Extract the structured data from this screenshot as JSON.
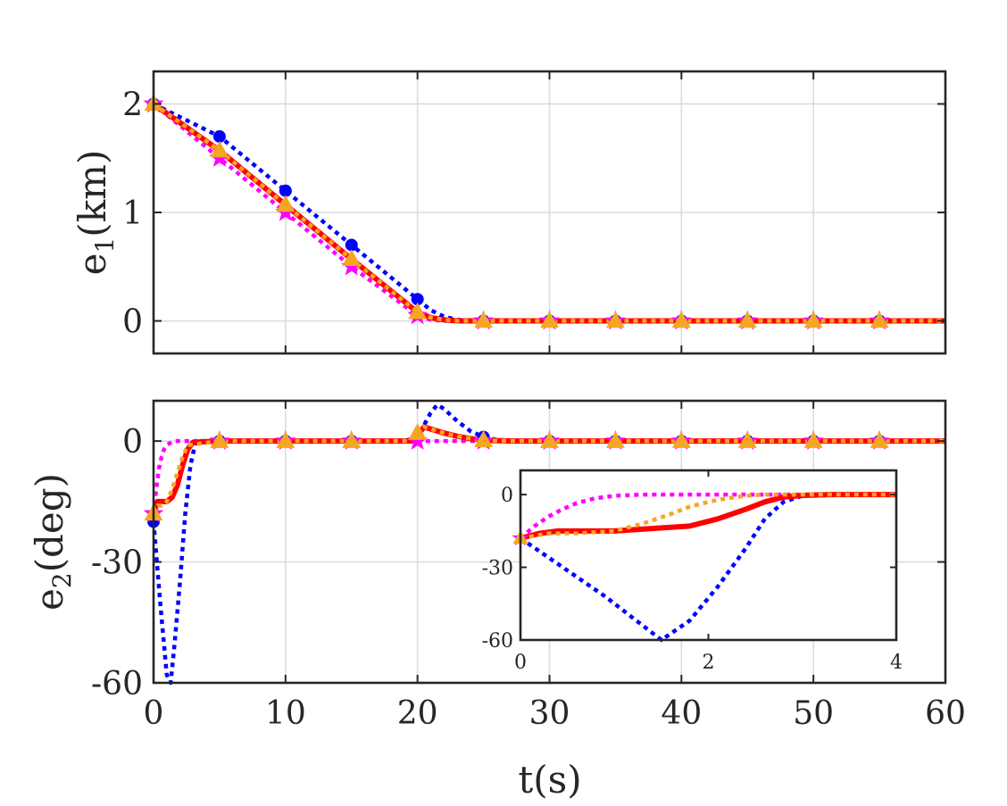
{
  "chart_data": [
    {
      "type": "line",
      "panel": "top",
      "xlabel": "",
      "ylabel": "e1(km)",
      "ylabel_base": "e",
      "ylabel_sub": "1",
      "ylabel_rest": "(km)",
      "xlim": [
        0,
        60
      ],
      "ylim": [
        -0.3,
        2.3
      ],
      "xticks": [
        0,
        10,
        20,
        30,
        40,
        50,
        60
      ],
      "yticks": [
        0,
        1,
        2
      ],
      "ytick_labels": [
        "0",
        "1",
        "2"
      ],
      "grid": true,
      "series": [
        {
          "color": "#0000ff",
          "style": "dotted",
          "marker": "circle",
          "x": [
            0,
            5,
            10,
            15,
            20,
            21,
            22,
            23,
            25,
            30,
            35,
            40,
            45,
            50,
            55,
            60
          ],
          "y": [
            2.0,
            1.7,
            1.2,
            0.7,
            0.2,
            0.1,
            0.04,
            0.01,
            0,
            0,
            0,
            0,
            0,
            0,
            0,
            0
          ]
        },
        {
          "color": "#ff00ff",
          "style": "dotted",
          "marker": "star",
          "x": [
            0,
            5,
            10,
            15,
            20,
            21,
            22,
            25,
            30,
            35,
            40,
            45,
            50,
            55,
            60
          ],
          "y": [
            2.0,
            1.5,
            1.0,
            0.5,
            0.05,
            0.01,
            0,
            0,
            0,
            0,
            0,
            0,
            0,
            0,
            0
          ]
        },
        {
          "color": "#ff0000",
          "style": "solid",
          "marker": "none",
          "x": [
            0,
            5,
            10,
            15,
            20,
            21,
            22,
            23,
            25,
            30,
            35,
            40,
            45,
            50,
            55,
            60
          ],
          "y": [
            2.0,
            1.57,
            1.07,
            0.57,
            0.08,
            0.03,
            0.01,
            0,
            0,
            0,
            0,
            0,
            0,
            0,
            0,
            0
          ]
        },
        {
          "color": "#f5a623",
          "style": "dotted",
          "marker": "triangle",
          "x": [
            0,
            5,
            10,
            15,
            20,
            21,
            22,
            23,
            25,
            30,
            35,
            40,
            45,
            50,
            55,
            60
          ],
          "y": [
            2.0,
            1.57,
            1.07,
            0.57,
            0.08,
            0.03,
            0.01,
            0,
            0,
            0,
            0,
            0,
            0,
            0,
            0,
            0
          ]
        }
      ]
    },
    {
      "type": "line",
      "panel": "bottom",
      "xlabel": "t(s)",
      "ylabel": "e2(deg)",
      "ylabel_base": "e",
      "ylabel_sub": "2",
      "ylabel_rest": "(deg)",
      "xlim": [
        0,
        60
      ],
      "ylim": [
        -60,
        10
      ],
      "xticks": [
        0,
        10,
        20,
        30,
        40,
        50,
        60
      ],
      "xtick_labels": [
        "0",
        "10",
        "20",
        "30",
        "40",
        "50",
        "60"
      ],
      "yticks": [
        -60,
        -30,
        0
      ],
      "ytick_labels": [
        "-60",
        "-30",
        "0"
      ],
      "grid": true,
      "series": [
        {
          "color": "#0000ff",
          "style": "dotted",
          "marker": "circle",
          "x": [
            0,
            0.5,
            1.0,
            1.3,
            1.6,
            2.0,
            2.4,
            2.8,
            3.2,
            5,
            19,
            20,
            21,
            21.5,
            22,
            23,
            24,
            25,
            26,
            28,
            30,
            60
          ],
          "y": [
            -20,
            -40,
            -58,
            -60,
            -50,
            -35,
            -18,
            -6,
            0,
            0,
            0,
            1,
            7,
            9,
            8,
            5,
            2.5,
            1,
            0.3,
            0,
            0,
            0
          ]
        },
        {
          "color": "#ff00ff",
          "style": "dotted",
          "marker": "star",
          "x": [
            0,
            0.2,
            0.4,
            0.6,
            0.8,
            1.0,
            1.5,
            5,
            20,
            25,
            30,
            35,
            40,
            45,
            50,
            55,
            60
          ],
          "y": [
            -18,
            -12,
            -7,
            -4,
            -2,
            -1,
            0,
            0,
            0,
            0,
            0,
            0,
            0,
            0,
            0,
            0,
            0
          ]
        },
        {
          "color": "#ff0000",
          "style": "solid",
          "marker": "none",
          "x": [
            0,
            0.3,
            0.6,
            1.0,
            1.4,
            1.8,
            2.2,
            2.6,
            3.0,
            5,
            19.5,
            20,
            20.5,
            21,
            22,
            23,
            24,
            25,
            27,
            30,
            60
          ],
          "y": [
            -18,
            -15,
            -15,
            -15,
            -14,
            -11,
            -6,
            -2,
            -0.3,
            0,
            0,
            1.5,
            3.5,
            3,
            2,
            1.2,
            0.6,
            0.2,
            0,
            0,
            0
          ]
        },
        {
          "color": "#f5a623",
          "style": "dotted",
          "marker": "triangle",
          "x": [
            0,
            0.3,
            0.6,
            1.0,
            1.4,
            1.8,
            2.2,
            2.6,
            5,
            19.5,
            20,
            20.5,
            21,
            22,
            23,
            24,
            25,
            27,
            30,
            60
          ],
          "y": [
            -18,
            -16,
            -16,
            -15,
            -12,
            -8,
            -4,
            -1,
            0,
            0,
            2,
            3.5,
            3,
            2,
            1.2,
            0.6,
            0.2,
            0,
            0,
            0
          ]
        }
      ]
    },
    {
      "type": "line",
      "panel": "inset",
      "xlim": [
        0,
        4
      ],
      "ylim": [
        -60,
        10
      ],
      "xticks": [
        0,
        2,
        4
      ],
      "xtick_labels": [
        "0",
        "2",
        "4"
      ],
      "yticks": [
        -60,
        -30,
        0
      ],
      "ytick_labels": [
        "-60",
        "-30",
        "0"
      ],
      "grid": false,
      "series": [
        {
          "color": "#0000ff",
          "style": "dotted",
          "x": [
            0,
            0.3,
            0.6,
            0.9,
            1.2,
            1.5,
            1.8,
            2.1,
            2.4,
            2.6,
            2.8,
            3.0,
            3.2,
            4.0
          ],
          "y": [
            -18,
            -26,
            -34,
            -42,
            -51,
            -60,
            -52,
            -38,
            -22,
            -10,
            -3,
            -0.5,
            0,
            0
          ]
        },
        {
          "color": "#ff00ff",
          "style": "dotted",
          "x": [
            0,
            0.15,
            0.3,
            0.45,
            0.6,
            0.8,
            1.0,
            1.3,
            1.6,
            2.0,
            4.0
          ],
          "y": [
            -18,
            -13,
            -9,
            -6,
            -3.5,
            -1.5,
            -0.5,
            0,
            0,
            0,
            0
          ]
        },
        {
          "color": "#ff0000",
          "style": "solid",
          "x": [
            0,
            0.2,
            0.4,
            0.7,
            1.0,
            1.4,
            1.8,
            2.1,
            2.4,
            2.6,
            2.8,
            3.0,
            3.3,
            4.0
          ],
          "y": [
            -18,
            -16,
            -15,
            -15,
            -15,
            -14,
            -13,
            -10,
            -6,
            -3,
            -1,
            -0.3,
            0,
            0
          ]
        },
        {
          "color": "#f5a623",
          "style": "dotted",
          "x": [
            0,
            0.3,
            0.6,
            1.0,
            1.3,
            1.6,
            1.8,
            2.0,
            2.2,
            2.4,
            2.6,
            4.0
          ],
          "y": [
            -18,
            -16,
            -16,
            -15,
            -12,
            -8,
            -5,
            -3,
            -1.5,
            -0.5,
            0,
            0
          ]
        }
      ]
    }
  ]
}
